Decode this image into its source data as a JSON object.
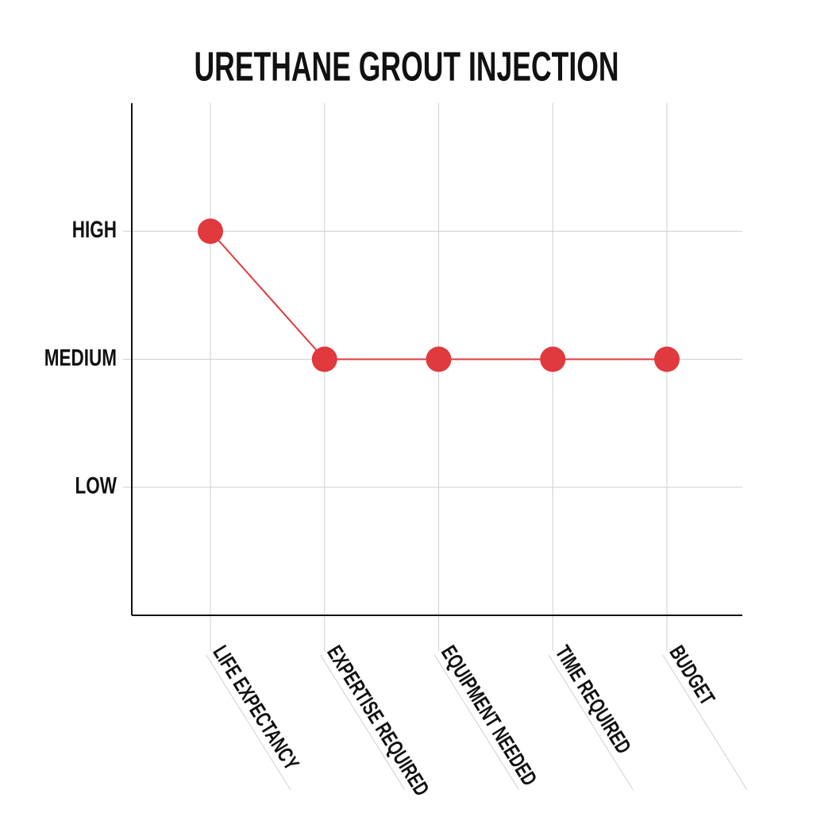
{
  "chart_data": {
    "type": "line",
    "title": "URETHANE GROUT INJECTION",
    "categories": [
      "LIFE EXPECTANCY",
      "EXPERTISE REQUIRED",
      "EQUIPMENT NEEDED",
      "TIME REQUIRED",
      "BUDGET"
    ],
    "values": [
      3,
      2,
      2,
      2,
      2
    ],
    "color": "#e0393e",
    "ylim": [
      0,
      4
    ],
    "yticks": [
      {
        "value": 1,
        "label": "LOW"
      },
      {
        "value": 2,
        "label": "MEDIUM"
      },
      {
        "value": 3,
        "label": "HIGH"
      }
    ],
    "grid": true
  }
}
